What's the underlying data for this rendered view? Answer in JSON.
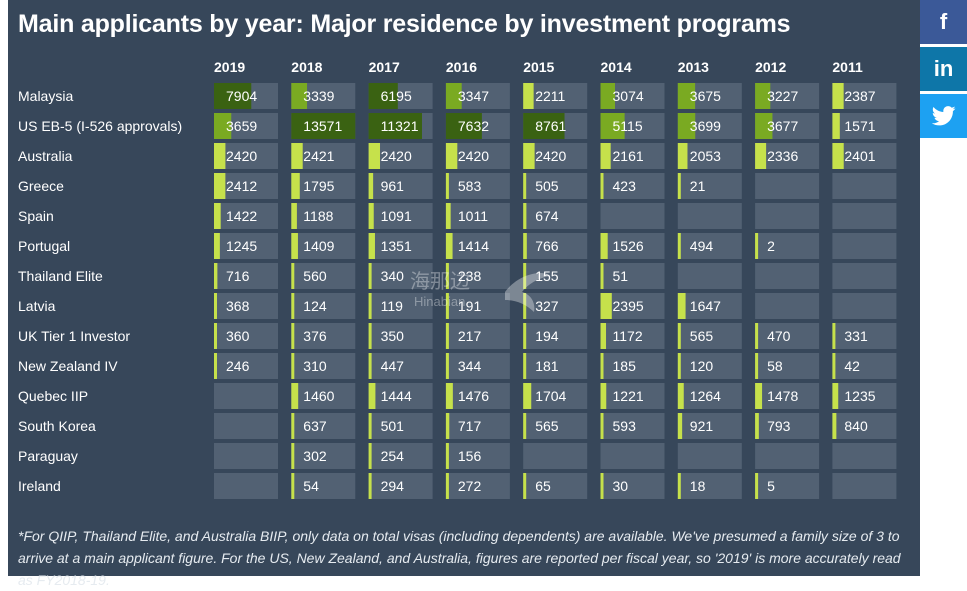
{
  "title": "Main applicants by year: Major residence by investment programs",
  "footnote": "*For QIIP, Thailand Elite, and Australia BIIP, only data on total visas (including dependents) are available. We've presumed a family size of 3 to arrive at a main applicant figure. For the US, New Zealand, and Australia, figures are reported per fiscal year, so '2019' is more accurately read as FY2018-19.",
  "share": {
    "facebook_label": "f",
    "linkedin_label": "in",
    "twitter_icon": "twitter-bird-icon"
  },
  "watermark": {
    "cn_text": "海那边",
    "en_text": "Hinabian"
  },
  "colors": {
    "panel": "#37475a",
    "cell": "#526173",
    "bar_light": "#c6e14b",
    "bar_mid": "#7aaa22",
    "bar_dark": "#3a6212",
    "text": "#ffffff"
  },
  "chart_data": {
    "type": "table",
    "title": "Main applicants by year: Major residence by investment programs",
    "columns": [
      "2019",
      "2018",
      "2017",
      "2016",
      "2015",
      "2014",
      "2013",
      "2012",
      "2011"
    ],
    "rows": [
      {
        "label": "Malaysia",
        "values": [
          7904,
          3339,
          6195,
          3347,
          2211,
          3074,
          3675,
          3227,
          2387
        ]
      },
      {
        "label": "US EB-5 (I-526 approvals)",
        "values": [
          3659,
          13571,
          11321,
          7632,
          8761,
          5115,
          3699,
          3677,
          1571
        ]
      },
      {
        "label": "Australia",
        "values": [
          2420,
          2421,
          2420,
          2420,
          2420,
          2161,
          2053,
          2336,
          2401
        ]
      },
      {
        "label": "Greece",
        "values": [
          2412,
          1795,
          961,
          583,
          505,
          423,
          21,
          null,
          null
        ]
      },
      {
        "label": "Spain",
        "values": [
          1422,
          1188,
          1091,
          1011,
          674,
          null,
          null,
          null,
          null
        ]
      },
      {
        "label": "Portugal",
        "values": [
          1245,
          1409,
          1351,
          1414,
          766,
          1526,
          494,
          2,
          null
        ]
      },
      {
        "label": "Thailand Elite",
        "values": [
          716,
          560,
          340,
          238,
          155,
          51,
          null,
          null,
          null
        ]
      },
      {
        "label": "Latvia",
        "values": [
          368,
          124,
          119,
          191,
          327,
          2395,
          1647,
          null,
          null
        ]
      },
      {
        "label": "UK Tier 1 Investor",
        "values": [
          360,
          376,
          350,
          217,
          194,
          1172,
          565,
          470,
          331
        ]
      },
      {
        "label": "New Zealand IV",
        "values": [
          246,
          310,
          447,
          344,
          181,
          185,
          120,
          58,
          42
        ]
      },
      {
        "label": "Quebec IIP",
        "values": [
          null,
          1460,
          1444,
          1476,
          1704,
          1221,
          1264,
          1478,
          1235
        ]
      },
      {
        "label": "South Korea",
        "values": [
          null,
          637,
          501,
          717,
          565,
          593,
          921,
          793,
          840
        ]
      },
      {
        "label": "Paraguay",
        "values": [
          null,
          302,
          254,
          156,
          null,
          null,
          null,
          null,
          null
        ]
      },
      {
        "label": "Ireland",
        "values": [
          null,
          54,
          294,
          272,
          65,
          30,
          18,
          5,
          null
        ]
      }
    ]
  }
}
